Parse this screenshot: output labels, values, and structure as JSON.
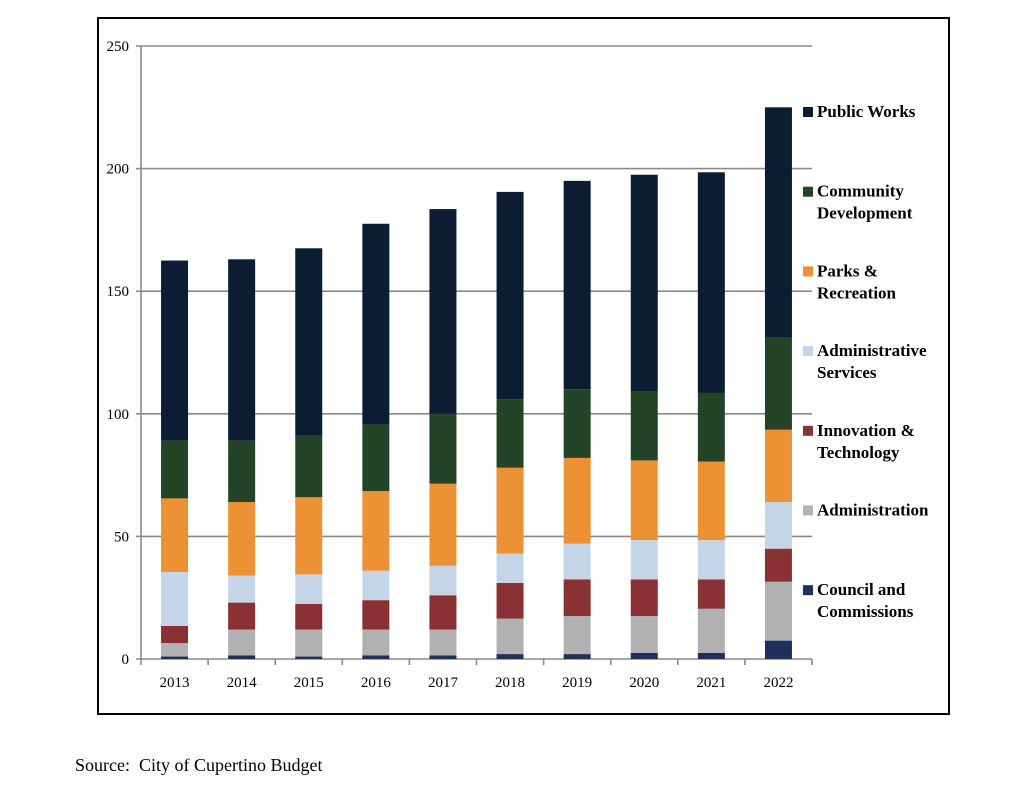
{
  "chart_data": {
    "type": "bar",
    "stacked": true,
    "categories": [
      "2013",
      "2014",
      "2015",
      "2016",
      "2017",
      "2018",
      "2019",
      "2020",
      "2021",
      "2022"
    ],
    "ylim": [
      0,
      250
    ],
    "yticks": [
      0,
      50,
      100,
      150,
      200,
      250
    ],
    "grid": true,
    "legend_placement": "right",
    "series": [
      {
        "name": "Council and Commissions",
        "color": "#1e2f5c",
        "values": [
          1,
          1.5,
          1,
          1.5,
          1.5,
          2,
          2,
          2.5,
          2.5,
          7.5
        ]
      },
      {
        "name": "Administration",
        "color": "#b1b1b1",
        "values": [
          5.5,
          10.5,
          11,
          10.5,
          10.5,
          14.5,
          15.5,
          15,
          18,
          24
        ]
      },
      {
        "name": "Innovation & Technology",
        "color": "#893133",
        "values": [
          7,
          11,
          10.5,
          12,
          14,
          14.5,
          15,
          15,
          12,
          13.5
        ]
      },
      {
        "name": "Administrative Services",
        "color": "#c5d5e8",
        "values": [
          22,
          11,
          12,
          12,
          12,
          12,
          14.5,
          16,
          16,
          19
        ]
      },
      {
        "name": "Parks & Recreation",
        "color": "#ec9134",
        "values": [
          30,
          30,
          31.5,
          32.5,
          33.5,
          35,
          35,
          32.5,
          32,
          29.5
        ]
      },
      {
        "name": "Community Development",
        "color": "#234427",
        "values": [
          23.5,
          25,
          25,
          27,
          28.5,
          28,
          28,
          28,
          28,
          37.5
        ]
      },
      {
        "name": "Public Works",
        "color": "#0b1c33",
        "values": [
          73.5,
          74,
          76.5,
          82,
          83.5,
          84.5,
          85,
          88.5,
          90,
          94
        ]
      }
    ],
    "legend": [
      {
        "lines": [
          "Public Works"
        ],
        "color": "#0b1c33"
      },
      {
        "lines": [
          "Community",
          "Development"
        ],
        "color": "#234427"
      },
      {
        "lines": [
          "Parks &",
          "Recreation"
        ],
        "color": "#ec9134"
      },
      {
        "lines": [
          "Administrative",
          "Services"
        ],
        "color": "#c5d5e8"
      },
      {
        "lines": [
          "Innovation &",
          "Technology"
        ],
        "color": "#893133"
      },
      {
        "lines": [
          "Administration"
        ],
        "color": "#b1b1b1"
      },
      {
        "lines": [
          "Council and",
          "Commissions"
        ],
        "color": "#1e2f5c"
      }
    ]
  },
  "source": "Source:  City of Cupertino Budget"
}
